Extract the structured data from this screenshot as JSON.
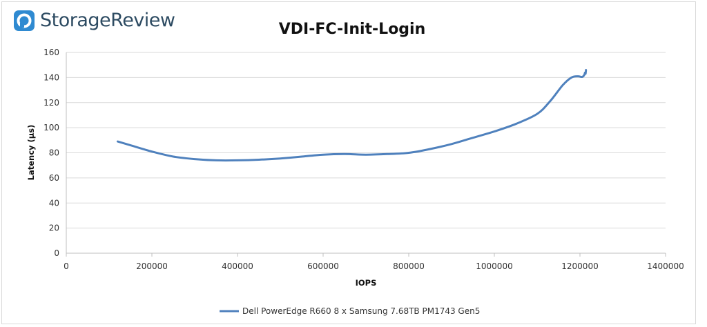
{
  "brand": {
    "name": "StorageReview",
    "accent": "#2f8ad1",
    "text_color": "#2d4b62",
    "icon": "storagereview-logo-icon"
  },
  "chart_data": {
    "type": "line",
    "title": "VDI-FC-Init-Login",
    "xlabel": "IOPS",
    "ylabel": "Latency (µs)",
    "xlim": [
      0,
      1400000
    ],
    "ylim": [
      0,
      160
    ],
    "xticks": [
      0,
      200000,
      400000,
      600000,
      800000,
      1000000,
      1200000,
      1400000
    ],
    "yticks": [
      0,
      20,
      40,
      60,
      80,
      100,
      120,
      140,
      160
    ],
    "grid": true,
    "legend_position": "bottom",
    "series": [
      {
        "name": "Dell PowerEdge R660 8 x Samsung 7.68TB PM1743 Gen5",
        "color": "#4f81bd",
        "x": [
          120000,
          150000,
          200000,
          250000,
          300000,
          350000,
          400000,
          450000,
          500000,
          550000,
          600000,
          650000,
          700000,
          750000,
          800000,
          850000,
          900000,
          950000,
          1000000,
          1050000,
          1100000,
          1130000,
          1160000,
          1180000,
          1195000,
          1205000,
          1210000,
          1212000,
          1213000,
          1214000
        ],
        "y": [
          89,
          86,
          81,
          77,
          75,
          74,
          74,
          74.5,
          75.5,
          77,
          78.5,
          79,
          78.5,
          79,
          80,
          83,
          87,
          92,
          97,
          103,
          111,
          121,
          134,
          140,
          141,
          140.5,
          142,
          144,
          143,
          146
        ]
      }
    ]
  }
}
